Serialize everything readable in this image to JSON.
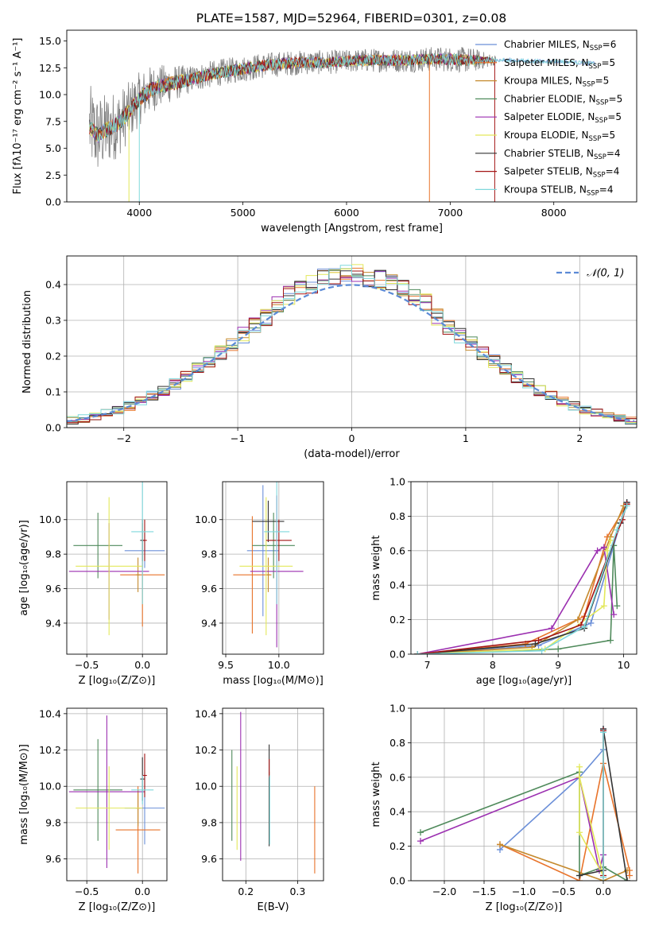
{
  "figure_title": "PLATE=1587, MJD=52964, FIBERID=0301, z=0.08",
  "colors": {
    "chabrier_miles": "#6b8fd8",
    "salpeter_miles": "#e8732a",
    "kroupa_miles": "#c58a2e",
    "chabrier_elodie": "#4f8a5b",
    "salpeter_elodie": "#9b2fb0",
    "kroupa_elodie": "#e3e85a",
    "chabrier_stelib": "#333333",
    "salpeter_stelib": "#a31515",
    "kroupa_stelib": "#7fd8dc",
    "data_spectrum": "#808080",
    "normal_curve": "#5b8ad6"
  },
  "chart_data": [
    {
      "id": "spectrum",
      "type": "line",
      "title": "PLATE=1587, MJD=52964, FIBERID=0301, z=0.08",
      "xlabel": "wavelength [Angstrom, rest frame]",
      "ylabel": "Flux [fλ10⁻¹⁷ erg cm⁻² s⁻¹ A⁻¹]",
      "xlim": [
        3300,
        8800
      ],
      "ylim": [
        0,
        16
      ],
      "xticks": [
        4000,
        5000,
        6000,
        7000,
        8000
      ],
      "yticks": [
        0.0,
        2.5,
        5.0,
        7.5,
        10.0,
        12.5,
        15.0
      ],
      "grid": false,
      "legend_position": "top-right",
      "legend": [
        {
          "label": "Chabrier MILES, N",
          "sub": "SSP",
          "suffix": "=6",
          "color_key": "chabrier_miles"
        },
        {
          "label": "Salpeter MILES, N",
          "sub": "SSP",
          "suffix": "=5",
          "color_key": "salpeter_miles"
        },
        {
          "label": "Kroupa MILES, N",
          "sub": "SSP",
          "suffix": "=5",
          "color_key": "kroupa_miles"
        },
        {
          "label": "Chabrier ELODIE, N",
          "sub": "SSP",
          "suffix": "=5",
          "color_key": "chabrier_elodie"
        },
        {
          "label": "Salpeter ELODIE, N",
          "sub": "SSP",
          "suffix": "=5",
          "color_key": "salpeter_elodie"
        },
        {
          "label": "Kroupa ELODIE, N",
          "sub": "SSP",
          "suffix": "=5",
          "color_key": "kroupa_elodie"
        },
        {
          "label": "Chabrier STELIB, N",
          "sub": "SSP",
          "suffix": "=4",
          "color_key": "chabrier_stelib"
        },
        {
          "label": "Salpeter STELIB, N",
          "sub": "SSP",
          "suffix": "=4",
          "color_key": "salpeter_stelib"
        },
        {
          "label": "Kroupa STELIB, N",
          "sub": "SSP",
          "suffix": "=4",
          "color_key": "kroupa_stelib"
        }
      ],
      "continuum": {
        "x": [
          3520,
          3600,
          3700,
          3800,
          3900,
          4000,
          4100,
          4200,
          4400,
          4600,
          4800,
          5000,
          5200,
          5400,
          5600,
          5800,
          6000,
          6200,
          6400,
          6600,
          6800,
          7000,
          7200,
          7400,
          7600,
          7800,
          8000,
          8200,
          8400
        ],
        "y": [
          7.0,
          6.2,
          6.8,
          7.3,
          8.4,
          9.6,
          10.4,
          10.8,
          11.2,
          11.7,
          12.1,
          12.4,
          12.7,
          12.9,
          13.0,
          13.0,
          13.1,
          13.2,
          13.2,
          13.2,
          13.3,
          13.3,
          13.2,
          13.2,
          13.2,
          13.1,
          13.1,
          13.0,
          12.9
        ]
      },
      "noise_amplitude": [
        [
          3520,
          4.0
        ],
        [
          4000,
          2.5
        ],
        [
          4500,
          1.3
        ],
        [
          6000,
          1.1
        ],
        [
          7200,
          1.2
        ],
        [
          7450,
          0.4
        ]
      ],
      "data_range": [
        3520,
        7450
      ],
      "model_range": [
        3520,
        8400
      ]
    },
    {
      "id": "residuals",
      "type": "histogram",
      "xlabel": "(data-model)/error",
      "ylabel": "Normed distribution",
      "xlim": [
        -2.5,
        2.5
      ],
      "ylim": [
        0,
        0.48
      ],
      "xticks": [
        -2,
        -1,
        0,
        1,
        2
      ],
      "yticks": [
        0.0,
        0.1,
        0.2,
        0.3,
        0.4
      ],
      "grid": true,
      "legend_position": "top-right",
      "legend": [
        {
          "label": "𝒩(0, 1)",
          "color_key": "normal_curve",
          "style": "dashed"
        }
      ],
      "bin_width": 0.1,
      "series_keys": [
        "chabrier_miles",
        "salpeter_miles",
        "kroupa_miles",
        "chabrier_elodie",
        "salpeter_elodie",
        "kroupa_elodie",
        "chabrier_stelib",
        "salpeter_stelib",
        "kroupa_stelib"
      ],
      "normal_curve": {
        "mean": 0,
        "sigma": 1
      }
    },
    {
      "id": "age-vs-z",
      "type": "scatter",
      "xlabel": "Z [log₁₀(Z/Z⊙)]",
      "ylabel": "age  [log₁₀(age/yr)]",
      "xlim": [
        -0.68,
        0.22
      ],
      "ylim": [
        9.22,
        10.22
      ],
      "xticks": [
        -0.5,
        0.0
      ],
      "yticks": [
        9.4,
        9.6,
        9.8,
        10.0
      ],
      "grid": true,
      "points": [
        {
          "key": "chabrier_miles",
          "x": 0.02,
          "y": 9.82,
          "xerr": 0.18,
          "yerr": 0.1
        },
        {
          "key": "salpeter_miles",
          "x": 0.0,
          "y": 9.68,
          "xerr": 0.2,
          "yerr": 0.3
        },
        {
          "key": "kroupa_miles",
          "x": -0.04,
          "y": 9.68,
          "xerr": 0.02,
          "yerr": 0.1
        },
        {
          "key": "chabrier_elodie",
          "x": -0.4,
          "y": 9.85,
          "xerr": 0.22,
          "yerr": 0.19
        },
        {
          "key": "salpeter_elodie",
          "x": -0.3,
          "y": 9.7,
          "xerr": 0.36,
          "yerr": 0.28
        },
        {
          "key": "kroupa_elodie",
          "x": -0.3,
          "y": 9.73,
          "xerr": 0.3,
          "yerr": 0.4
        },
        {
          "key": "chabrier_stelib",
          "x": 0.0,
          "y": 9.88,
          "xerr": 0.02,
          "yerr": 0.12
        },
        {
          "key": "salpeter_stelib",
          "x": 0.02,
          "y": 9.88,
          "xerr": 0.02,
          "yerr": 0.12
        },
        {
          "key": "kroupa_stelib",
          "x": 0.0,
          "y": 9.93,
          "xerr": 0.1,
          "yerr": 0.42
        }
      ]
    },
    {
      "id": "age-vs-mass",
      "type": "scatter",
      "xlabel": "mass [log₁₀(M/M⊙)]",
      "ylabel": "",
      "xlim": [
        9.47,
        10.42
      ],
      "ylim": [
        9.22,
        10.22
      ],
      "xticks": [
        9.5,
        10.0
      ],
      "yticks": [
        9.4,
        9.6,
        9.8,
        10.0
      ],
      "grid": true,
      "points": [
        {
          "key": "chabrier_miles",
          "x": 9.85,
          "y": 9.82,
          "xerr": 0.15,
          "yerr": 0.38
        },
        {
          "key": "salpeter_miles",
          "x": 9.75,
          "y": 9.68,
          "xerr": 0.18,
          "yerr": 0.34
        },
        {
          "key": "kroupa_miles",
          "x": 9.9,
          "y": 9.68,
          "xerr": 0.02,
          "yerr": 0.1
        },
        {
          "key": "chabrier_elodie",
          "x": 9.95,
          "y": 9.85,
          "xerr": 0.2,
          "yerr": 0.19
        },
        {
          "key": "salpeter_elodie",
          "x": 9.98,
          "y": 9.7,
          "xerr": 0.25,
          "yerr": 0.44
        },
        {
          "key": "kroupa_elodie",
          "x": 9.88,
          "y": 9.73,
          "xerr": 0.25,
          "yerr": 0.4
        },
        {
          "key": "chabrier_stelib",
          "x": 9.9,
          "y": 9.99,
          "xerr": 0.15,
          "yerr": 0.12
        },
        {
          "key": "salpeter_stelib",
          "x": 10.0,
          "y": 9.88,
          "xerr": 0.12,
          "yerr": 0.12
        },
        {
          "key": "kroupa_stelib",
          "x": 9.98,
          "y": 9.93,
          "xerr": 0.12,
          "yerr": 0.42
        }
      ]
    },
    {
      "id": "weight-vs-age",
      "type": "line",
      "xlabel": "age  [log₁₀(age/yr)]",
      "ylabel": "mass weight",
      "xlim": [
        6.75,
        10.2
      ],
      "ylim": [
        0,
        1
      ],
      "xticks": [
        7,
        8,
        9,
        10
      ],
      "yticks": [
        0.0,
        0.2,
        0.4,
        0.6,
        0.8,
        1.0
      ],
      "grid": true,
      "series": [
        {
          "key": "chabrier_miles",
          "x": [
            6.85,
            8.7,
            9.5,
            9.95,
            10.05
          ],
          "y": [
            0.0,
            0.05,
            0.18,
            0.76,
            0.88
          ]
        },
        {
          "key": "salpeter_miles",
          "x": [
            6.85,
            8.5,
            9.4,
            9.75,
            10.05
          ],
          "y": [
            0.0,
            0.06,
            0.22,
            0.68,
            0.87
          ]
        },
        {
          "key": "kroupa_miles",
          "x": [
            6.85,
            8.6,
            9.3,
            9.8,
            10.0
          ],
          "y": [
            0.0,
            0.04,
            0.2,
            0.68,
            0.86
          ]
        },
        {
          "key": "chabrier_elodie",
          "x": [
            6.85,
            9.0,
            9.8,
            9.85,
            9.9
          ],
          "y": [
            0.0,
            0.03,
            0.08,
            0.63,
            0.28
          ]
        },
        {
          "key": "salpeter_elodie",
          "x": [
            6.85,
            8.9,
            9.6,
            9.7,
            9.85
          ],
          "y": [
            0.0,
            0.15,
            0.6,
            0.62,
            0.23
          ]
        },
        {
          "key": "kroupa_elodie",
          "x": [
            6.85,
            8.8,
            9.7,
            9.75,
            9.8
          ],
          "y": [
            0.0,
            0.03,
            0.28,
            0.6,
            0.66
          ]
        },
        {
          "key": "chabrier_stelib",
          "x": [
            6.85,
            8.65,
            9.4,
            9.95,
            10.05
          ],
          "y": [
            0.0,
            0.06,
            0.15,
            0.76,
            0.88
          ]
        },
        {
          "key": "salpeter_stelib",
          "x": [
            6.85,
            8.7,
            9.35,
            9.98,
            10.05
          ],
          "y": [
            0.0,
            0.08,
            0.17,
            0.78,
            0.87
          ]
        },
        {
          "key": "kroupa_stelib",
          "x": [
            6.85,
            8.75,
            9.4,
            9.9,
            10.05
          ],
          "y": [
            0.0,
            0.02,
            0.16,
            0.72,
            0.86
          ]
        }
      ]
    },
    {
      "id": "mass-vs-z",
      "type": "scatter",
      "xlabel": "Z [log₁₀(Z/Z⊙)]",
      "ylabel": "mass [log₁₀(M/M⊙)]",
      "xlim": [
        -0.68,
        0.22
      ],
      "ylim": [
        9.48,
        10.43
      ],
      "xticks": [
        -0.5,
        0.0
      ],
      "yticks": [
        9.6,
        9.8,
        10.0,
        10.2,
        10.4
      ],
      "grid": true,
      "points": [
        {
          "key": "chabrier_miles",
          "x": 0.02,
          "y": 9.88,
          "xerr": 0.18,
          "yerr": 0.2
        },
        {
          "key": "salpeter_miles",
          "x": -0.04,
          "y": 9.76,
          "xerr": 0.2,
          "yerr": 0.24
        },
        {
          "key": "kroupa_miles",
          "x": -0.04,
          "y": 9.88,
          "xerr": 0.02,
          "yerr": 0.1
        },
        {
          "key": "chabrier_elodie",
          "x": -0.4,
          "y": 9.98,
          "xerr": 0.22,
          "yerr": 0.28
        },
        {
          "key": "salpeter_elodie",
          "x": -0.32,
          "y": 9.97,
          "xerr": 0.34,
          "yerr": 0.42
        },
        {
          "key": "kroupa_elodie",
          "x": -0.3,
          "y": 9.88,
          "xerr": 0.3,
          "yerr": 0.23
        },
        {
          "key": "chabrier_stelib",
          "x": 0.0,
          "y": 10.04,
          "xerr": 0.02,
          "yerr": 0.12
        },
        {
          "key": "salpeter_stelib",
          "x": 0.02,
          "y": 10.06,
          "xerr": 0.02,
          "yerr": 0.12
        },
        {
          "key": "kroupa_stelib",
          "x": 0.0,
          "y": 9.98,
          "xerr": 0.1,
          "yerr": 0.08
        }
      ]
    },
    {
      "id": "mass-vs-ebv",
      "type": "scatter",
      "xlabel": "E(B-V)",
      "ylabel": "",
      "xlim": [
        0.155,
        0.35
      ],
      "ylim": [
        9.48,
        10.43
      ],
      "xticks": [
        0.2,
        0.3
      ],
      "yticks": [
        9.6,
        9.8,
        10.0,
        10.2,
        10.4
      ],
      "grid": true,
      "points": [
        {
          "key": "chabrier_miles",
          "x": 0.245,
          "y": 9.87,
          "xerr": 0,
          "yerr": 0.15
        },
        {
          "key": "salpeter_miles",
          "x": 0.333,
          "y": 9.76,
          "xerr": 0,
          "yerr": 0.24
        },
        {
          "key": "kroupa_miles",
          "x": 0.245,
          "y": 9.88,
          "xerr": 0,
          "yerr": 0.2
        },
        {
          "key": "chabrier_elodie",
          "x": 0.173,
          "y": 9.95,
          "xerr": 0,
          "yerr": 0.25
        },
        {
          "key": "salpeter_elodie",
          "x": 0.19,
          "y": 10.0,
          "xerr": 0,
          "yerr": 0.41
        },
        {
          "key": "kroupa_elodie",
          "x": 0.183,
          "y": 9.88,
          "xerr": 0,
          "yerr": 0.23
        },
        {
          "key": "chabrier_stelib",
          "x": 0.245,
          "y": 9.95,
          "xerr": 0,
          "yerr": 0.28
        },
        {
          "key": "salpeter_stelib",
          "x": 0.245,
          "y": 10.1,
          "xerr": 0,
          "yerr": 0.05
        },
        {
          "key": "kroupa_stelib",
          "x": 0.246,
          "y": 9.87,
          "xerr": 0,
          "yerr": 0.19
        }
      ]
    },
    {
      "id": "weight-vs-z",
      "type": "line",
      "xlabel": "Z [log₁₀(Z/Z⊙)]",
      "ylabel": "mass weight",
      "xlim": [
        -2.42,
        0.42
      ],
      "ylim": [
        0,
        1
      ],
      "xticks": [
        -2.0,
        -1.5,
        -1.0,
        -0.5,
        0.0
      ],
      "yticks": [
        0.0,
        0.2,
        0.4,
        0.6,
        0.8,
        1.0
      ],
      "grid": true,
      "series": [
        {
          "key": "chabrier_miles",
          "x": [
            -1.3,
            -0.3,
            0.0,
            0.0
          ],
          "y": [
            0.18,
            0.6,
            0.76,
            0.88
          ]
        },
        {
          "key": "salpeter_miles",
          "x": [
            -1.3,
            -0.3,
            0.0,
            0.33,
            0.33
          ],
          "y": [
            0.21,
            0.0,
            0.68,
            0.06,
            0.03
          ]
        },
        {
          "key": "kroupa_miles",
          "x": [
            -1.3,
            0.0,
            0.3
          ],
          "y": [
            0.21,
            0.0,
            0.06
          ]
        },
        {
          "key": "chabrier_elodie",
          "x": [
            -2.3,
            -0.3,
            -0.3,
            0.0,
            0.3
          ],
          "y": [
            0.28,
            0.63,
            0.03,
            0.08,
            0.0
          ]
        },
        {
          "key": "salpeter_elodie",
          "x": [
            -2.3,
            -0.3,
            -0.05,
            0.0
          ],
          "y": [
            0.23,
            0.6,
            0.06,
            0.15
          ]
        },
        {
          "key": "kroupa_elodie",
          "x": [
            -0.3,
            -0.3,
            0.0,
            -0.3
          ],
          "y": [
            0.66,
            0.28,
            0.03,
            0.6
          ]
        },
        {
          "key": "chabrier_stelib",
          "x": [
            -0.3,
            0.0,
            0.0,
            0.3
          ],
          "y": [
            0.03,
            0.06,
            0.88,
            0.0
          ]
        },
        {
          "key": "salpeter_stelib",
          "x": [
            0.0,
            0.0
          ],
          "y": [
            0.03,
            0.87
          ]
        },
        {
          "key": "kroupa_stelib",
          "x": [
            0.0,
            0.0
          ],
          "y": [
            0.02,
            0.86
          ]
        }
      ]
    }
  ]
}
